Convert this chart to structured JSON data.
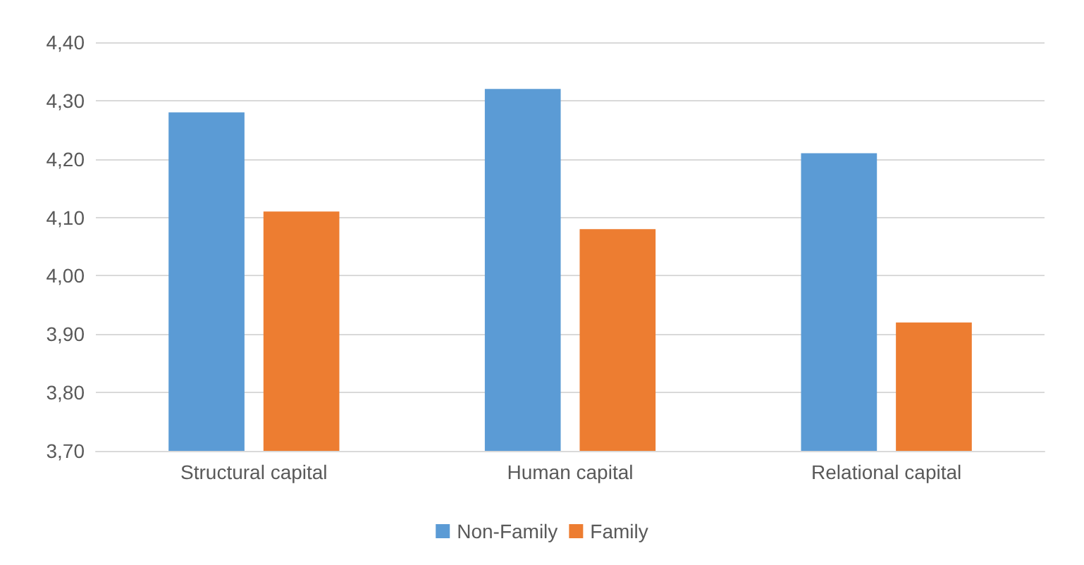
{
  "chart_data": {
    "type": "bar",
    "categories": [
      "Structural capital",
      "Human capital",
      "Relational capital"
    ],
    "series": [
      {
        "name": "Non-Family",
        "color": "#5b9bd5",
        "values": [
          4.28,
          4.32,
          4.21
        ]
      },
      {
        "name": "Family",
        "color": "#ed7d31",
        "values": [
          4.11,
          4.08,
          3.92
        ]
      }
    ],
    "ylim": [
      3.7,
      4.4
    ],
    "yticks": [
      {
        "value": 3.7,
        "label": "3,70"
      },
      {
        "value": 3.8,
        "label": "3,80"
      },
      {
        "value": 3.9,
        "label": "3,90"
      },
      {
        "value": 4.0,
        "label": "4,00"
      },
      {
        "value": 4.1,
        "label": "4,10"
      },
      {
        "value": 4.2,
        "label": "4,20"
      },
      {
        "value": 4.3,
        "label": "4,30"
      },
      {
        "value": 4.4,
        "label": "4,40"
      }
    ],
    "grid": "y",
    "legend": "bottom"
  }
}
